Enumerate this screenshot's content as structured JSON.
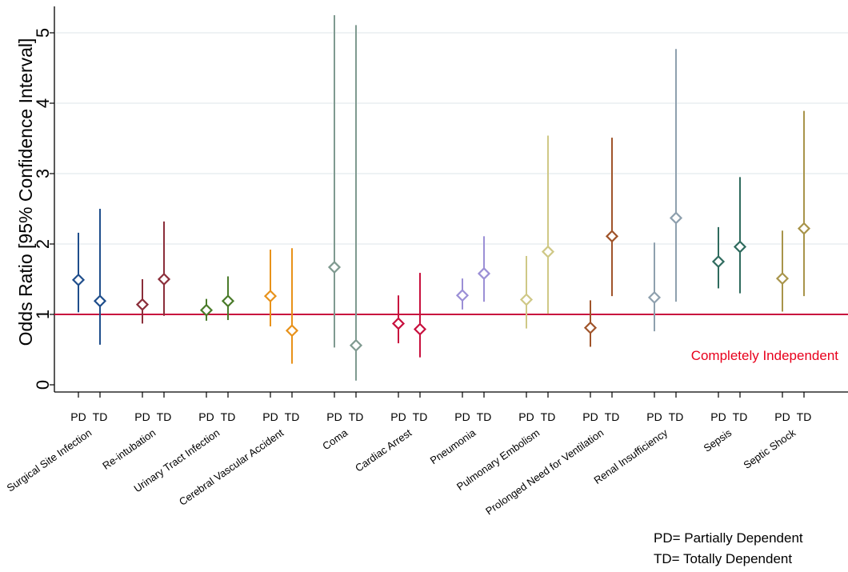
{
  "chart_data": {
    "type": "scatter",
    "title": "",
    "xlabel": "",
    "ylabel": "Odds Ratio [95% Confidence Interval]",
    "ylim": [
      0,
      5.4
    ],
    "yticks": [
      0,
      1,
      2,
      3,
      4,
      5
    ],
    "grid": true,
    "reference_line": {
      "y": 1,
      "label": "Completely Independent",
      "color": "#c8103e",
      "label_color": "#e8001c"
    },
    "group_labels": [
      "PD",
      "TD"
    ],
    "categories": [
      {
        "name": "Surgical Site Infection",
        "color": "#1f4e8c",
        "pd": {
          "or": 1.49,
          "lo": 1.03,
          "hi": 2.16
        },
        "td": {
          "or": 1.19,
          "lo": 0.57,
          "hi": 2.5
        }
      },
      {
        "name": "Re-intubation",
        "color": "#8b2e3a",
        "pd": {
          "or": 1.14,
          "lo": 0.87,
          "hi": 1.5
        },
        "td": {
          "or": 1.5,
          "lo": 0.98,
          "hi": 2.32
        }
      },
      {
        "name": "Urinary Tract Infection",
        "color": "#4a7b2a",
        "pd": {
          "or": 1.06,
          "lo": 0.91,
          "hi": 1.22
        },
        "td": {
          "or": 1.19,
          "lo": 0.92,
          "hi": 1.54
        }
      },
      {
        "name": "Cerebral Vascular Accident",
        "color": "#e8921a",
        "pd": {
          "or": 1.26,
          "lo": 0.83,
          "hi": 1.92
        },
        "td": {
          "or": 0.77,
          "lo": 0.3,
          "hi": 1.94
        }
      },
      {
        "name": "Coma",
        "color": "#7f9a90",
        "pd": {
          "or": 1.67,
          "lo": 0.53,
          "hi": 5.25
        },
        "td": {
          "or": 0.56,
          "lo": 0.06,
          "hi": 5.11
        }
      },
      {
        "name": "Cardiac Arrest",
        "color": "#c8103e",
        "pd": {
          "or": 0.87,
          "lo": 0.59,
          "hi": 1.27
        },
        "td": {
          "or": 0.79,
          "lo": 0.39,
          "hi": 1.59
        }
      },
      {
        "name": "Pneumonia",
        "color": "#9b8fd6",
        "pd": {
          "or": 1.27,
          "lo": 1.07,
          "hi": 1.51
        },
        "td": {
          "or": 1.58,
          "lo": 1.18,
          "hi": 2.11
        }
      },
      {
        "name": "Pulmonary Embolism",
        "color": "#cfc886",
        "pd": {
          "or": 1.21,
          "lo": 0.8,
          "hi": 1.83
        },
        "td": {
          "or": 1.89,
          "lo": 1.01,
          "hi": 3.54
        }
      },
      {
        "name": "Prolonged Need for Ventilation",
        "color": "#a0542a",
        "pd": {
          "or": 0.81,
          "lo": 0.54,
          "hi": 1.2
        },
        "td": {
          "or": 2.11,
          "lo": 1.26,
          "hi": 3.51
        }
      },
      {
        "name": "Renal Insufficiency",
        "color": "#8ea0ae",
        "pd": {
          "or": 1.24,
          "lo": 0.76,
          "hi": 2.02
        },
        "td": {
          "or": 2.37,
          "lo": 1.18,
          "hi": 4.77
        }
      },
      {
        "name": "Sepsis",
        "color": "#2f6b5e",
        "pd": {
          "or": 1.75,
          "lo": 1.37,
          "hi": 2.24
        },
        "td": {
          "or": 1.96,
          "lo": 1.3,
          "hi": 2.95
        }
      },
      {
        "name": "Septic Shock",
        "color": "#a8944a",
        "pd": {
          "or": 1.51,
          "lo": 1.04,
          "hi": 2.19
        },
        "td": {
          "or": 2.22,
          "lo": 1.26,
          "hi": 3.89
        }
      }
    ],
    "notes": [
      "PD= Partially Dependent",
      "TD= Totally Dependent"
    ]
  }
}
